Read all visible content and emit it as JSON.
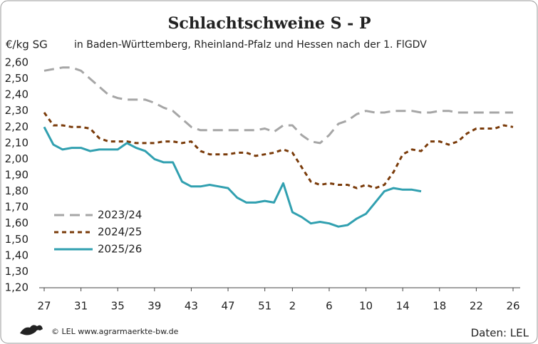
{
  "chart_data": {
    "type": "line",
    "title": "Schlachtschweine S - P",
    "subtitle": "in Baden-Württemberg, Rheinland-Pfalz und Hessen nach der 1. FlGDV",
    "y_label": "€/kg SG",
    "source_left": "© LEL www.agrarmaerkte-bw.de",
    "source_right": "Daten: LEL",
    "categories": [
      "27",
      null,
      null,
      null,
      "31",
      null,
      null,
      null,
      "35",
      null,
      null,
      null,
      "39",
      null,
      null,
      null,
      "43",
      null,
      null,
      null,
      "47",
      null,
      null,
      null,
      "51",
      null,
      null,
      "2",
      null,
      null,
      null,
      "6",
      null,
      null,
      null,
      "10",
      null,
      null,
      null,
      "14",
      null,
      null,
      null,
      "18",
      null,
      null,
      null,
      "22",
      null,
      null,
      null,
      "26"
    ],
    "series": [
      {
        "name": "2023/24",
        "color": "#a6a6a6",
        "dash": "dashed",
        "values": [
          2.55,
          2.56,
          2.57,
          2.57,
          2.55,
          2.5,
          2.45,
          2.4,
          2.38,
          2.37,
          2.37,
          2.37,
          2.35,
          2.32,
          2.3,
          2.25,
          2.2,
          2.18,
          2.18,
          2.18,
          2.18,
          2.18,
          2.18,
          2.18,
          2.19,
          2.17,
          2.21,
          2.21,
          2.15,
          2.11,
          2.1,
          2.15,
          2.22,
          2.24,
          2.28,
          2.3,
          2.29,
          2.29,
          2.3,
          2.3,
          2.3,
          2.29,
          2.29,
          2.3,
          2.3,
          2.29,
          2.29,
          2.29,
          2.29,
          2.29,
          2.29,
          2.29
        ]
      },
      {
        "name": "2024/25",
        "color": "#7a3b0a",
        "dash": "dotted",
        "values": [
          2.29,
          2.21,
          2.21,
          2.2,
          2.2,
          2.19,
          2.13,
          2.11,
          2.11,
          2.11,
          2.1,
          2.1,
          2.1,
          2.11,
          2.11,
          2.1,
          2.11,
          2.05,
          2.03,
          2.03,
          2.03,
          2.04,
          2.04,
          2.02,
          2.03,
          2.04,
          2.06,
          2.04,
          1.95,
          1.86,
          1.84,
          1.85,
          1.84,
          1.84,
          1.82,
          1.84,
          1.82,
          1.84,
          1.92,
          2.03,
          2.06,
          2.05,
          2.11,
          2.11,
          2.09,
          2.11,
          2.16,
          2.19,
          2.19,
          2.19,
          2.21,
          2.2
        ]
      },
      {
        "name": "2025/26",
        "color": "#31a0b0",
        "dash": "solid",
        "values": [
          2.2,
          2.09,
          2.06,
          2.07,
          2.07,
          2.05,
          2.06,
          2.06,
          2.06,
          2.1,
          2.07,
          2.05,
          2.0,
          1.98,
          1.98,
          1.86,
          1.83,
          1.83,
          1.84,
          1.83,
          1.82,
          1.76,
          1.73,
          1.73,
          1.74,
          1.73,
          1.85,
          1.67,
          1.64,
          1.6,
          1.61,
          1.6,
          1.58,
          1.59,
          1.63,
          1.66,
          1.73,
          1.8,
          1.82,
          1.81,
          1.81,
          1.8,
          null,
          null,
          null,
          null,
          null,
          null,
          null,
          null,
          null,
          null
        ]
      }
    ],
    "ylim": [
      1.2,
      2.6
    ],
    "yticks": [
      {
        "value": 1.2,
        "label": "1,20"
      },
      {
        "value": 1.3,
        "label": "1,30"
      },
      {
        "value": 1.4,
        "label": "1,40"
      },
      {
        "value": 1.5,
        "label": "1,50"
      },
      {
        "value": 1.6,
        "label": "1,60"
      },
      {
        "value": 1.7,
        "label": "1,70"
      },
      {
        "value": 1.8,
        "label": "1,80"
      },
      {
        "value": 1.9,
        "label": "1,90"
      },
      {
        "value": 2.0,
        "label": "2,00"
      },
      {
        "value": 2.1,
        "label": "2,10"
      },
      {
        "value": 2.2,
        "label": "2,20"
      },
      {
        "value": 2.3,
        "label": "2,30"
      },
      {
        "value": 2.4,
        "label": "2,40"
      },
      {
        "value": 2.5,
        "label": "2,50"
      },
      {
        "value": 2.6,
        "label": "2,60"
      }
    ],
    "grid": false,
    "legend": "left"
  }
}
